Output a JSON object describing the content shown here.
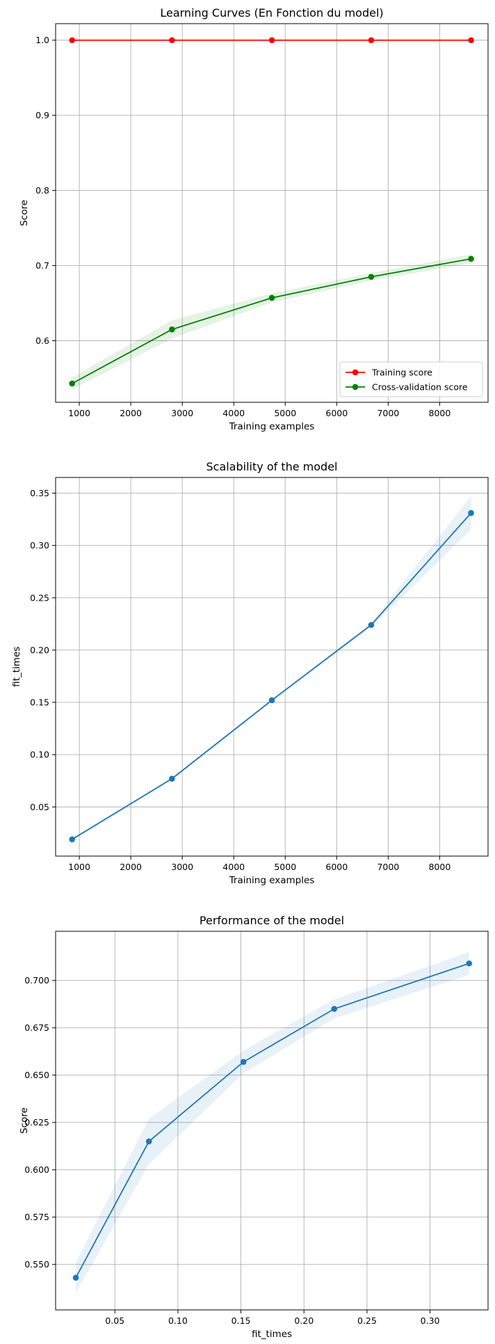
{
  "chart_data": [
    {
      "type": "line",
      "title": "Learning Curves (En Fonction du model)",
      "xlabel": "Training examples",
      "ylabel": "Score",
      "xlim": [
        540,
        8940
      ],
      "ylim": [
        0.518,
        1.022
      ],
      "xticks": [
        1000,
        2000,
        3000,
        4000,
        5000,
        6000,
        7000,
        8000
      ],
      "xtick_labels": [
        "1000",
        "2000",
        "3000",
        "4000",
        "5000",
        "6000",
        "7000",
        "8000"
      ],
      "yticks": [
        0.6,
        0.7,
        0.8,
        0.9,
        1.0
      ],
      "ytick_labels": [
        "0.6",
        "0.7",
        "0.8",
        "0.9",
        "1.0"
      ],
      "grid": true,
      "legend": "lower-right",
      "x": [
        860,
        2800,
        4740,
        6670,
        8610
      ],
      "series": [
        {
          "name": "Training score",
          "color": "#ff0000",
          "values": [
            1.0,
            1.0,
            1.0,
            1.0,
            1.0
          ],
          "band_lower": [
            1.0,
            1.0,
            1.0,
            1.0,
            1.0
          ],
          "band_upper": [
            1.0,
            1.0,
            1.0,
            1.0,
            1.0
          ]
        },
        {
          "name": "Cross-validation score",
          "color": "#008000",
          "values": [
            0.543,
            0.615,
            0.657,
            0.685,
            0.709
          ],
          "band_lower": [
            0.535,
            0.603,
            0.651,
            0.68,
            0.703
          ],
          "band_upper": [
            0.551,
            0.627,
            0.663,
            0.69,
            0.715
          ]
        }
      ]
    },
    {
      "type": "line",
      "title": "Scalability of the model",
      "xlabel": "Training examples",
      "ylabel": "fit_times",
      "xlim": [
        540,
        8940
      ],
      "ylim": [
        0.003,
        0.365
      ],
      "xticks": [
        1000,
        2000,
        3000,
        4000,
        5000,
        6000,
        7000,
        8000
      ],
      "xtick_labels": [
        "1000",
        "2000",
        "3000",
        "4000",
        "5000",
        "6000",
        "7000",
        "8000"
      ],
      "yticks": [
        0.05,
        0.1,
        0.15,
        0.2,
        0.25,
        0.3,
        0.35
      ],
      "ytick_labels": [
        "0.05",
        "0.10",
        "0.15",
        "0.20",
        "0.25",
        "0.30",
        "0.35"
      ],
      "grid": true,
      "x": [
        860,
        2800,
        4740,
        6670,
        8610
      ],
      "series": [
        {
          "color": "#1f77b4",
          "values": [
            0.019,
            0.077,
            0.152,
            0.224,
            0.331
          ],
          "band_lower": [
            0.018,
            0.076,
            0.151,
            0.222,
            0.315
          ],
          "band_upper": [
            0.02,
            0.078,
            0.153,
            0.226,
            0.347
          ]
        }
      ]
    },
    {
      "type": "line",
      "title": "Performance of the model",
      "xlabel": "fit_times",
      "ylabel": "Score",
      "xlim": [
        0.003,
        0.346
      ],
      "ylim": [
        0.526,
        0.726
      ],
      "xticks": [
        0.05,
        0.1,
        0.15,
        0.2,
        0.25,
        0.3
      ],
      "xtick_labels": [
        "0.05",
        "0.10",
        "0.15",
        "0.20",
        "0.25",
        "0.30"
      ],
      "yticks": [
        0.55,
        0.575,
        0.6,
        0.625,
        0.65,
        0.675,
        0.7
      ],
      "ytick_labels": [
        "0.550",
        "0.575",
        "0.600",
        "0.625",
        "0.650",
        "0.675",
        "0.700"
      ],
      "grid": true,
      "x": [
        0.019,
        0.077,
        0.152,
        0.224,
        0.331
      ],
      "series": [
        {
          "color": "#1f77b4",
          "values": [
            0.543,
            0.615,
            0.657,
            0.685,
            0.709
          ],
          "band_lower": [
            0.535,
            0.603,
            0.651,
            0.68,
            0.703
          ],
          "band_upper": [
            0.551,
            0.627,
            0.663,
            0.69,
            0.715
          ]
        }
      ]
    }
  ]
}
